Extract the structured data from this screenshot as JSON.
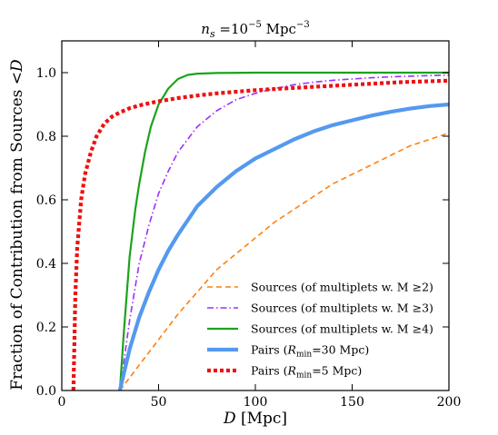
{
  "chart_data": {
    "type": "line",
    "title": "n_s =10^-5 Mpc^-3",
    "title_parts": {
      "main": "n",
      "sub": "s",
      "eq": " =10",
      "exp": "−5",
      "unit": " Mpc",
      "unit_exp": "−3"
    },
    "xlabel": "D  [Mpc]",
    "ylabel": "Fraction of Contribution from Sources <D",
    "xlim": [
      0,
      200
    ],
    "ylim": [
      0,
      1.1
    ],
    "xticks": [
      0,
      50,
      100,
      150,
      200
    ],
    "xtick_labels": [
      "0",
      "50",
      "100",
      "150",
      "200"
    ],
    "yticks": [
      0,
      0.2,
      0.4,
      0.6,
      0.8,
      1.0
    ],
    "ytick_labels": [
      "0.0",
      "0.2",
      "0.4",
      "0.6",
      "0.8",
      "1.0"
    ],
    "grid": false,
    "legend_position": "lower-right",
    "series": [
      {
        "name": "Sources (of multiplets w. M ≥2)",
        "color": "#ff7f0e",
        "style": "dashed",
        "width": "thin",
        "x": [
          30,
          35,
          40,
          50,
          60,
          70,
          80,
          90,
          100,
          110,
          120,
          130,
          140,
          150,
          160,
          170,
          180,
          190,
          200
        ],
        "y": [
          0.0,
          0.04,
          0.08,
          0.16,
          0.24,
          0.31,
          0.38,
          0.43,
          0.48,
          0.53,
          0.57,
          0.61,
          0.65,
          0.68,
          0.71,
          0.74,
          0.77,
          0.79,
          0.81
        ]
      },
      {
        "name": "Sources (of multiplets w. M ≥3)",
        "color": "#9b30ff",
        "style": "dashdot",
        "width": "thin",
        "x": [
          30,
          35,
          40,
          45,
          50,
          55,
          60,
          70,
          80,
          90,
          100,
          110,
          120,
          130,
          140,
          150,
          160,
          170,
          180,
          190,
          200
        ],
        "y": [
          0.0,
          0.22,
          0.4,
          0.52,
          0.62,
          0.69,
          0.75,
          0.83,
          0.88,
          0.915,
          0.935,
          0.95,
          0.962,
          0.97,
          0.976,
          0.98,
          0.984,
          0.987,
          0.989,
          0.991,
          0.992
        ]
      },
      {
        "name": "Sources (of multiplets w. M ≥4)",
        "color": "#1ca31c",
        "style": "solid",
        "width": "medium",
        "x": [
          30,
          32,
          35,
          38,
          40,
          43,
          46,
          50,
          55,
          60,
          65,
          70,
          80,
          100,
          150,
          200
        ],
        "y": [
          0.0,
          0.18,
          0.42,
          0.57,
          0.65,
          0.75,
          0.83,
          0.9,
          0.95,
          0.98,
          0.993,
          0.997,
          0.999,
          1.0,
          1.0,
          1.0
        ]
      },
      {
        "name": "Pairs (R_min =30 Mpc)",
        "color": "#5599ee",
        "style": "solid",
        "width": "thick",
        "x": [
          30,
          35,
          40,
          45,
          50,
          55,
          60,
          70,
          80,
          90,
          100,
          110,
          120,
          130,
          140,
          150,
          160,
          170,
          180,
          190,
          200
        ],
        "y": [
          0.0,
          0.13,
          0.23,
          0.31,
          0.38,
          0.44,
          0.49,
          0.58,
          0.64,
          0.69,
          0.73,
          0.76,
          0.79,
          0.815,
          0.835,
          0.85,
          0.865,
          0.877,
          0.887,
          0.895,
          0.9
        ]
      },
      {
        "name": "Pairs (R_min =5 Mpc)",
        "color": "#ee1111",
        "style": "dotted",
        "width": "thick",
        "x": [
          6,
          7,
          8,
          10,
          12,
          15,
          18,
          22,
          26,
          30,
          35,
          40,
          50,
          60,
          70,
          80,
          100,
          120,
          150,
          175,
          200
        ],
        "y": [
          0.0,
          0.3,
          0.45,
          0.6,
          0.68,
          0.75,
          0.8,
          0.84,
          0.862,
          0.875,
          0.888,
          0.897,
          0.91,
          0.92,
          0.928,
          0.935,
          0.945,
          0.952,
          0.962,
          0.97,
          0.975
        ]
      }
    ],
    "legend_entries": [
      {
        "prefix": "Sources (of multiplets w. M ",
        "sym": "≥",
        "suffix": "2)"
      },
      {
        "prefix": "Sources (of multiplets w. M ",
        "sym": "≥",
        "suffix": "3)"
      },
      {
        "prefix": "Sources (of multiplets w. M ",
        "sym": "≥",
        "suffix": "4)"
      },
      {
        "prefix": "Pairs (",
        "rsym": "R",
        "rsub": "min",
        "suffix": "=30 Mpc)"
      },
      {
        "prefix": "Pairs (",
        "rsym": "R",
        "rsub": "min",
        "suffix": "=5 Mpc)"
      }
    ]
  }
}
